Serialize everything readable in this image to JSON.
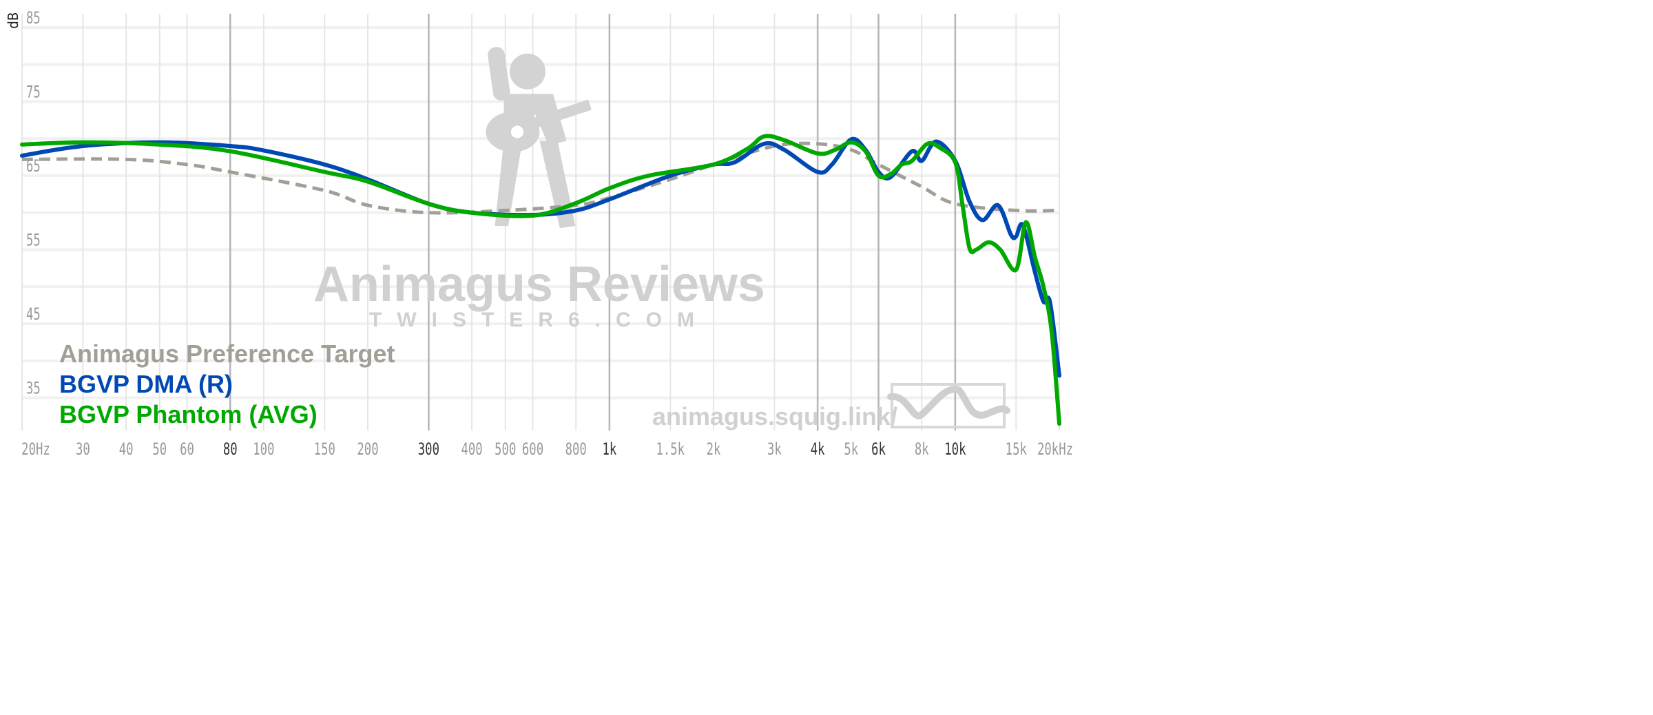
{
  "chart_data": {
    "type": "line",
    "title": "",
    "xlabel": "",
    "ylabel": "dB",
    "xscale": "log",
    "xlim": [
      20,
      20000
    ],
    "ylim": [
      30,
      85
    ],
    "y_ticks": [
      85,
      75,
      65,
      55,
      45,
      35
    ],
    "x_ticks": [
      {
        "value": 20,
        "label": "20Hz",
        "major": false
      },
      {
        "value": 30,
        "label": "30",
        "major": false
      },
      {
        "value": 40,
        "label": "40",
        "major": false
      },
      {
        "value": 50,
        "label": "50",
        "major": false
      },
      {
        "value": 60,
        "label": "60",
        "major": false
      },
      {
        "value": 80,
        "label": "80",
        "major": true
      },
      {
        "value": 100,
        "label": "100",
        "major": false
      },
      {
        "value": 150,
        "label": "150",
        "major": false
      },
      {
        "value": 200,
        "label": "200",
        "major": false
      },
      {
        "value": 300,
        "label": "300",
        "major": true
      },
      {
        "value": 400,
        "label": "400",
        "major": false
      },
      {
        "value": 500,
        "label": "500",
        "major": false
      },
      {
        "value": 600,
        "label": "600",
        "major": false
      },
      {
        "value": 800,
        "label": "800",
        "major": false
      },
      {
        "value": 1000,
        "label": "1k",
        "major": true
      },
      {
        "value": 1500,
        "label": "1.5k",
        "major": false
      },
      {
        "value": 2000,
        "label": "2k",
        "major": false
      },
      {
        "value": 3000,
        "label": "3k",
        "major": false
      },
      {
        "value": 4000,
        "label": "4k",
        "major": true
      },
      {
        "value": 5000,
        "label": "5k",
        "major": false
      },
      {
        "value": 6000,
        "label": "6k",
        "major": true
      },
      {
        "value": 8000,
        "label": "8k",
        "major": false
      },
      {
        "value": 10000,
        "label": "10k",
        "major": true
      },
      {
        "value": 15000,
        "label": "15k",
        "major": false
      },
      {
        "value": 20000,
        "label": "20kHz",
        "major": false
      }
    ],
    "grid": true,
    "legend_position": "bottom-left",
    "series": [
      {
        "name": "Animagus Preference Target",
        "color": "#a39f96",
        "dashed": true,
        "x": [
          20,
          40,
          60,
          80,
          150,
          200,
          300,
          500,
          800,
          1000,
          1500,
          2000,
          3000,
          4000,
          5000,
          6000,
          8000,
          10000,
          15000,
          20000
        ],
        "y": [
          67.2,
          67.2,
          66.5,
          65.5,
          63,
          61,
          60,
          60.3,
          61,
          62,
          64.5,
          66.5,
          69,
          69.3,
          68.5,
          66.5,
          63.5,
          61.2,
          60.3,
          60.3
        ]
      },
      {
        "name": "BGVP DMA (R)",
        "color": "#0048b4",
        "dashed": false,
        "x": [
          20,
          30,
          50,
          80,
          100,
          150,
          200,
          300,
          400,
          600,
          800,
          1000,
          1500,
          2000,
          2300,
          2800,
          3200,
          4000,
          4400,
          5000,
          5500,
          6000,
          6500,
          7500,
          8000,
          8800,
          10000,
          11000,
          12000,
          13300,
          14500,
          15000,
          15700,
          17000,
          18000,
          18800,
          20000
        ],
        "y": [
          67.7,
          69,
          69.5,
          69,
          68.4,
          66.5,
          64.5,
          61.2,
          60,
          59.7,
          60.3,
          61.8,
          65,
          66.5,
          66.8,
          69.3,
          68.5,
          65.5,
          66.5,
          69.9,
          68.5,
          65.5,
          64.8,
          68.3,
          67,
          69.6,
          67,
          61.5,
          59,
          61,
          57,
          56.8,
          58.3,
          52,
          48,
          47.9,
          38
        ]
      },
      {
        "name": "BGVP Phantom (AVG)",
        "color": "#00a800",
        "dashed": false,
        "x": [
          20,
          30,
          50,
          80,
          150,
          200,
          300,
          400,
          600,
          800,
          1000,
          1300,
          2000,
          2500,
          2800,
          3200,
          4000,
          4500,
          5000,
          5500,
          6000,
          6500,
          7000,
          7500,
          8300,
          9000,
          10000,
          10500,
          11000,
          11500,
          12500,
          13500,
          15000,
          16000,
          17000,
          18000,
          19000,
          20000
        ],
        "y": [
          69.2,
          69.5,
          69.2,
          68.3,
          65.5,
          64.2,
          61.2,
          60,
          59.6,
          61.3,
          63.3,
          65,
          66.5,
          68.6,
          70.3,
          69.8,
          68,
          68.5,
          69.5,
          68.3,
          65,
          65.2,
          66.5,
          67,
          69.3,
          68.8,
          66.8,
          61,
          55.2,
          55,
          56,
          55,
          52.3,
          58.7,
          54,
          50,
          44,
          31.5
        ]
      }
    ]
  },
  "watermark": {
    "brand": "Animagus Reviews",
    "site": "TWISTER6.COM",
    "url": "animagus.squig.link/"
  }
}
